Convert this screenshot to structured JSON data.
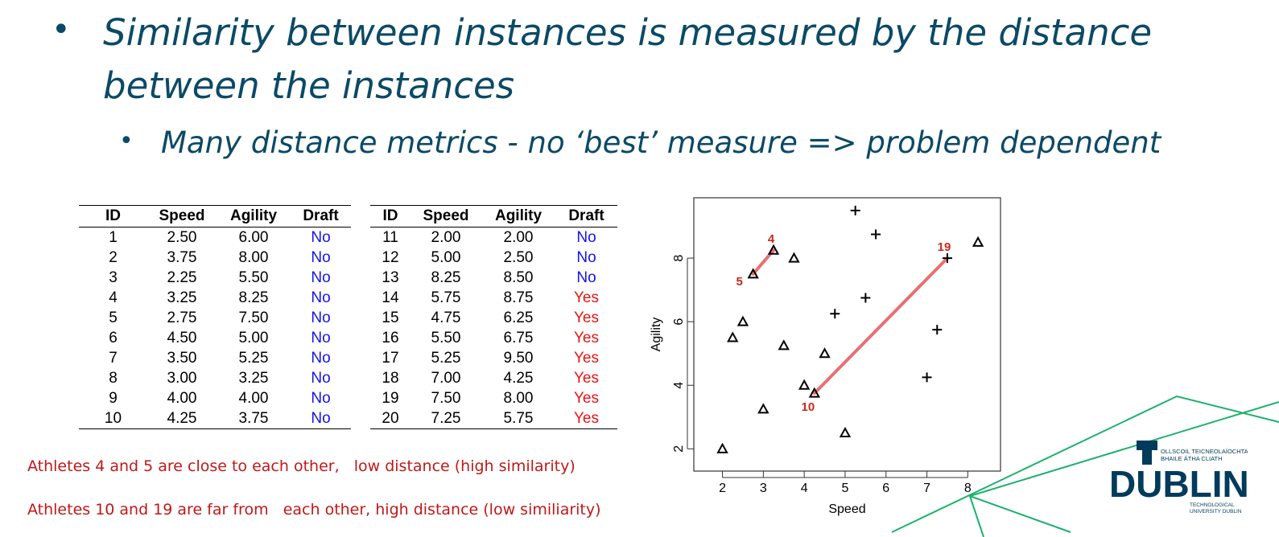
{
  "slide": {
    "bullet1": "Similarity between instances is measured by the distance between the instances",
    "bullet2": "Many distance metrics - no ‘best’ measure => problem dependent",
    "note1": "Athletes 4 and 5 are close to each other,   low distance (high similarity)",
    "note2": "Athletes 10 and 19 are far from   each other, high distance (low similiarity)",
    "bullet_symbol": "•",
    "accent_color": "#0b4a66",
    "note_color": "#c01818"
  },
  "table": {
    "headers": [
      "ID",
      "Speed",
      "Agility",
      "Draft"
    ],
    "left_rows": [
      [
        "1",
        "2.50",
        "6.00",
        "No"
      ],
      [
        "2",
        "3.75",
        "8.00",
        "No"
      ],
      [
        "3",
        "2.25",
        "5.50",
        "No"
      ],
      [
        "4",
        "3.25",
        "8.25",
        "No"
      ],
      [
        "5",
        "2.75",
        "7.50",
        "No"
      ],
      [
        "6",
        "4.50",
        "5.00",
        "No"
      ],
      [
        "7",
        "3.50",
        "5.25",
        "No"
      ],
      [
        "8",
        "3.00",
        "3.25",
        "No"
      ],
      [
        "9",
        "4.00",
        "4.00",
        "No"
      ],
      [
        "10",
        "4.25",
        "3.75",
        "No"
      ]
    ],
    "right_rows": [
      [
        "11",
        "2.00",
        "2.00",
        "No"
      ],
      [
        "12",
        "5.00",
        "2.50",
        "No"
      ],
      [
        "13",
        "8.25",
        "8.50",
        "No"
      ],
      [
        "14",
        "5.75",
        "8.75",
        "Yes"
      ],
      [
        "15",
        "4.75",
        "6.25",
        "Yes"
      ],
      [
        "16",
        "5.50",
        "6.75",
        "Yes"
      ],
      [
        "17",
        "5.25",
        "9.50",
        "Yes"
      ],
      [
        "18",
        "7.00",
        "4.25",
        "Yes"
      ],
      [
        "19",
        "7.50",
        "8.00",
        "Yes"
      ],
      [
        "20",
        "7.25",
        "5.75",
        "Yes"
      ]
    ]
  },
  "chart_data": {
    "type": "scatter",
    "xlabel": "Speed",
    "ylabel": "Agility",
    "xlim": [
      1.3,
      8.8
    ],
    "ylim": [
      1.3,
      9.9
    ],
    "xticks": [
      2,
      3,
      4,
      5,
      6,
      7,
      8
    ],
    "yticks": [
      2,
      4,
      6,
      8
    ],
    "grid": false,
    "series": [
      {
        "marker": "triangle",
        "points": [
          [
            2.5,
            6.0
          ],
          [
            3.75,
            8.0
          ],
          [
            2.25,
            5.5
          ],
          [
            3.25,
            8.25
          ],
          [
            2.75,
            7.5
          ],
          [
            4.5,
            5.0
          ],
          [
            3.5,
            5.25
          ],
          [
            3.0,
            3.25
          ],
          [
            4.0,
            4.0
          ],
          [
            4.25,
            3.75
          ],
          [
            2.0,
            2.0
          ],
          [
            5.0,
            2.5
          ],
          [
            8.25,
            8.5
          ]
        ]
      },
      {
        "marker": "plus",
        "points": [
          [
            5.75,
            8.75
          ],
          [
            4.75,
            6.25
          ],
          [
            5.5,
            6.75
          ],
          [
            5.25,
            9.5
          ],
          [
            7.0,
            4.25
          ],
          [
            7.5,
            8.0
          ],
          [
            7.25,
            5.75
          ]
        ]
      }
    ],
    "annotations": [
      {
        "text": "4",
        "x": 3.25,
        "y": 8.25
      },
      {
        "text": "5",
        "x": 2.75,
        "y": 7.5
      },
      {
        "text": "10",
        "x": 4.25,
        "y": 3.75
      },
      {
        "text": "19",
        "x": 7.5,
        "y": 8.0
      }
    ],
    "connections": [
      {
        "from": [
          2.75,
          7.5
        ],
        "to": [
          3.25,
          8.25
        ]
      },
      {
        "from": [
          4.25,
          3.75
        ],
        "to": [
          7.5,
          8.0
        ]
      }
    ],
    "annotation_color": "#c8281e",
    "line_color": "#e87070"
  },
  "logo": {
    "word": "DUBLIN",
    "line1": "OLLSCOIL TEICNEOLAÍOCHTA",
    "line2": "BHAILE ÁTHA CLIATH",
    "line3": "TECHNOLOGICAL",
    "line4": "UNIVERSITY DUBLIN",
    "color": "#003b5c",
    "green": "#1ab26b"
  }
}
